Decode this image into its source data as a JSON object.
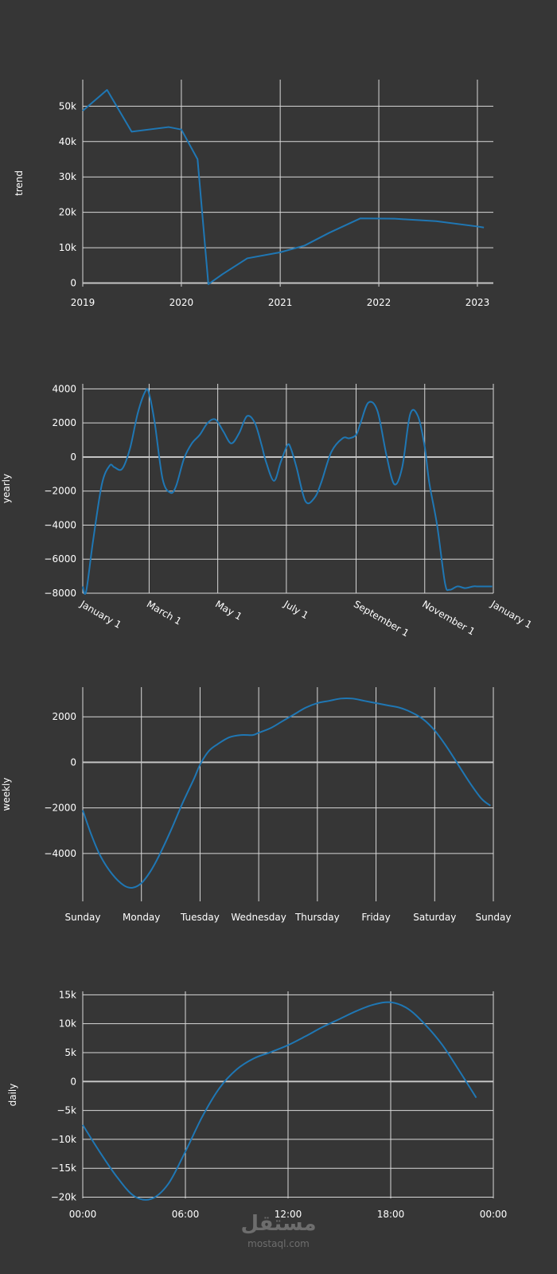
{
  "page": {
    "background": "#363636"
  },
  "colors": {
    "line": "#1f77b4",
    "grid": "#d8d8d8",
    "zero": "#c4c4c4",
    "text": "#ffffff"
  },
  "watermark": {
    "arabic": "مستقل",
    "latin": "mostaql.com"
  },
  "chart_data": [
    {
      "id": "trend",
      "type": "line",
      "ylabel": "trend",
      "x_kind": "date",
      "x_ticks": [
        "2019",
        "2020",
        "2021",
        "2022",
        "2023"
      ],
      "y_ticks": [
        "0",
        "10k",
        "20k",
        "30k",
        "40k",
        "50k"
      ],
      "y_tick_values": [
        0,
        10000,
        20000,
        30000,
        40000,
        50000
      ],
      "xlim": [
        "2019-01-01",
        "2023-03-01"
      ],
      "ylim": [
        -1000,
        57500
      ],
      "grid": true,
      "x": [
        "2019-01-01",
        "2019-04-01",
        "2019-07-01",
        "2019-11-15",
        "2020-01-01",
        "2020-03-01",
        "2020-04-10",
        "2020-06-01",
        "2020-09-01",
        "2021-01-01",
        "2021-04-01",
        "2021-07-01",
        "2021-10-25",
        "2022-03-01",
        "2022-08-01",
        "2023-01-01",
        "2023-01-25"
      ],
      "values": [
        48700,
        54600,
        42800,
        44100,
        43400,
        35000,
        -300,
        2500,
        7000,
        8700,
        10600,
        14200,
        18300,
        18200,
        17500,
        16000,
        15700
      ]
    },
    {
      "id": "yearly",
      "type": "line",
      "ylabel": "yearly",
      "x_kind": "date",
      "x_ticks": [
        "January 1",
        "March 1",
        "May 1",
        "July 1",
        "September 1",
        "November 1",
        "January 1"
      ],
      "y_ticks": [
        "4000",
        "2000",
        "0",
        "−2000",
        "−4000",
        "−6000",
        "−8000"
      ],
      "y_tick_values": [
        4000,
        2000,
        0,
        -2000,
        -4000,
        -6000,
        -8000
      ],
      "xlim": [
        "2017-01-01",
        "2018-01-01"
      ],
      "ylim": [
        -8000,
        4300
      ],
      "grid": true,
      "x": [
        "2017-01-01",
        "2017-01-04",
        "2017-01-10",
        "2017-01-18",
        "2017-01-25",
        "2017-01-29",
        "2017-02-05",
        "2017-02-12",
        "2017-02-19",
        "2017-02-26",
        "2017-03-01",
        "2017-03-06",
        "2017-03-13",
        "2017-03-20",
        "2017-03-25",
        "2017-04-01",
        "2017-04-08",
        "2017-04-15",
        "2017-04-22",
        "2017-04-29",
        "2017-05-06",
        "2017-05-13",
        "2017-05-20",
        "2017-05-27",
        "2017-06-03",
        "2017-06-09",
        "2017-06-13",
        "2017-06-20",
        "2017-06-26",
        "2017-07-02",
        "2017-07-05",
        "2017-07-10",
        "2017-07-18",
        "2017-07-26",
        "2017-08-01",
        "2017-08-10",
        "2017-08-20",
        "2017-08-26",
        "2017-09-01",
        "2017-09-05",
        "2017-09-12",
        "2017-09-20",
        "2017-09-28",
        "2017-10-05",
        "2017-10-12",
        "2017-10-19",
        "2017-10-26",
        "2017-11-01",
        "2017-11-05",
        "2017-11-12",
        "2017-11-19",
        "2017-11-23",
        "2017-11-30",
        "2017-12-07",
        "2017-12-14",
        "2017-12-18",
        "2017-12-24",
        "2017-12-31"
      ],
      "values": [
        -7600,
        -7900,
        -5000,
        -1600,
        -500,
        -600,
        -700,
        500,
        2600,
        3900,
        3700,
        2000,
        -1300,
        -2100,
        -1700,
        -100,
        800,
        1300,
        2000,
        2200,
        1500,
        800,
        1400,
        2400,
        2000,
        700,
        -300,
        -1400,
        -300,
        700,
        500,
        -600,
        -2600,
        -2400,
        -1500,
        300,
        1100,
        1100,
        1300,
        2000,
        3200,
        2700,
        100,
        -1600,
        -600,
        2500,
        2400,
        600,
        -1500,
        -4000,
        -7400,
        -7800,
        -7600,
        -7700,
        -7600,
        -7600,
        -7600,
        -7600
      ]
    },
    {
      "id": "weekly",
      "type": "line",
      "ylabel": "weekly",
      "x_kind": "day",
      "x_ticks": [
        "Sunday",
        "Monday",
        "Tuesday",
        "Wednesday",
        "Thursday",
        "Friday",
        "Saturday",
        "Sunday"
      ],
      "y_ticks": [
        "2000",
        "0",
        "−2000",
        "−4000"
      ],
      "y_tick_values": [
        2000,
        0,
        -2000,
        -4000
      ],
      "xlim": [
        0,
        7
      ],
      "ylim": [
        -6100,
        3300
      ],
      "grid": true,
      "x": [
        0,
        0.15,
        0.3,
        0.5,
        0.7,
        0.85,
        1.0,
        1.15,
        1.3,
        1.5,
        1.7,
        1.9,
        2.0,
        2.15,
        2.3,
        2.5,
        2.7,
        2.9,
        3.0,
        3.2,
        3.4,
        3.6,
        3.8,
        4.0,
        4.2,
        4.4,
        4.6,
        4.8,
        5.0,
        5.2,
        5.4,
        5.6,
        5.8,
        6.0,
        6.2,
        6.4,
        6.6,
        6.8,
        6.95
      ],
      "values": [
        -2100,
        -3200,
        -4100,
        -4900,
        -5400,
        -5500,
        -5300,
        -4800,
        -4100,
        -3000,
        -1800,
        -700,
        -100,
        500,
        800,
        1100,
        1200,
        1200,
        1300,
        1500,
        1800,
        2100,
        2400,
        2600,
        2700,
        2800,
        2800,
        2700,
        2600,
        2500,
        2400,
        2200,
        1900,
        1400,
        700,
        -100,
        -900,
        -1600,
        -1900
      ]
    },
    {
      "id": "daily",
      "type": "line",
      "ylabel": "daily",
      "x_kind": "hour",
      "x_ticks": [
        "00:00",
        "06:00",
        "12:00",
        "18:00",
        "00:00"
      ],
      "y_ticks": [
        "15k",
        "10k",
        "5k",
        "0",
        "−5k",
        "−10k",
        "−15k",
        "−20k"
      ],
      "y_tick_values": [
        15000,
        10000,
        5000,
        0,
        -5000,
        -10000,
        -15000,
        -20000
      ],
      "xlim": [
        0,
        24
      ],
      "ylim": [
        -20200,
        15600
      ],
      "grid": true,
      "x": [
        0,
        1,
        2,
        3,
        4,
        5,
        6,
        7,
        8,
        9,
        10,
        11,
        12,
        13,
        14,
        15,
        16,
        17,
        18,
        19,
        20,
        21,
        22,
        23
      ],
      "values": [
        -7500,
        -12200,
        -16500,
        -19800,
        -20300,
        -17700,
        -12100,
        -6000,
        -1100,
        2100,
        4000,
        5100,
        6300,
        7800,
        9400,
        10800,
        12200,
        13300,
        13700,
        12600,
        9900,
        6400,
        1900,
        -2800
      ]
    }
  ]
}
